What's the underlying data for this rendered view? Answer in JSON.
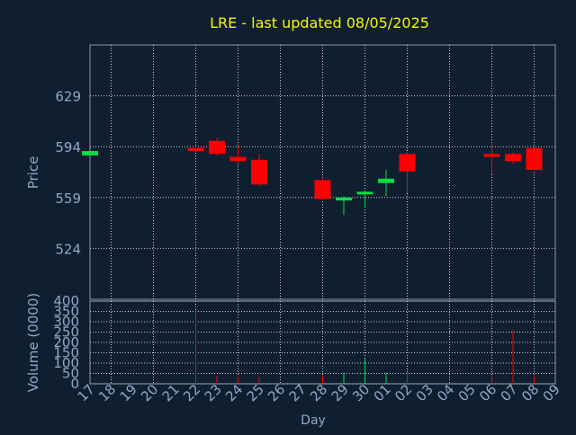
{
  "title": "LRE - last updated 08/05/2025",
  "colors": {
    "background": "#0f1f30",
    "frame": "#8899aa",
    "grid": "#c8d0d8",
    "title": "#f5f500",
    "axis_text": "#8fa8c8",
    "up": "#00e040",
    "down": "#ff0000"
  },
  "chart_data": [
    {
      "type": "candlestick",
      "title": "LRE - last updated 08/05/2025",
      "xlabel": "Day",
      "ylabel": "Price",
      "x_tick_labels": [
        "17",
        "18",
        "19",
        "20",
        "21",
        "22",
        "23",
        "24",
        "25",
        "26",
        "27",
        "28",
        "29",
        "30",
        "01",
        "02",
        "03",
        "04",
        "05",
        "06",
        "07",
        "08",
        "09"
      ],
      "y_ticks": [
        524,
        559,
        594,
        629
      ],
      "ylim": [
        489,
        664
      ],
      "grid": true,
      "candles": [
        {
          "day": "17",
          "open": 588,
          "close": 591,
          "high": 591,
          "low": 588
        },
        {
          "day": "22",
          "open": 593,
          "close": 591,
          "high": 594,
          "low": 590
        },
        {
          "day": "23",
          "open": 598,
          "close": 589,
          "high": 600,
          "low": 588
        },
        {
          "day": "24",
          "open": 587,
          "close": 584,
          "high": 595,
          "low": 583
        },
        {
          "day": "25",
          "open": 585,
          "close": 568,
          "high": 589,
          "low": 567
        },
        {
          "day": "28",
          "open": 571,
          "close": 558,
          "high": 572,
          "low": 557
        },
        {
          "day": "29",
          "open": 557,
          "close": 559,
          "high": 560,
          "low": 547
        },
        {
          "day": "30",
          "open": 562,
          "close": 563,
          "high": 563,
          "low": 552
        },
        {
          "day": "01",
          "open": 569,
          "close": 572,
          "high": 578,
          "low": 560
        },
        {
          "day": "02",
          "open": 589,
          "close": 577,
          "high": 590,
          "low": 562
        },
        {
          "day": "06",
          "open": 589,
          "close": 587,
          "high": 597,
          "low": 575
        },
        {
          "day": "07",
          "open": 589,
          "close": 584,
          "high": 590,
          "low": 582
        },
        {
          "day": "08",
          "open": 593,
          "close": 578,
          "high": 593,
          "low": 578
        }
      ]
    },
    {
      "type": "bar",
      "xlabel": "Day",
      "ylabel": "Volume (0000)",
      "x_tick_labels": [
        "17",
        "18",
        "19",
        "20",
        "21",
        "22",
        "23",
        "24",
        "25",
        "26",
        "27",
        "28",
        "29",
        "30",
        "01",
        "02",
        "03",
        "04",
        "05",
        "06",
        "07",
        "08",
        "09"
      ],
      "y_tick_labels": [
        "0",
        "50",
        "100",
        "150",
        "200",
        "250",
        "300",
        "350",
        "400"
      ],
      "ylim": [
        0,
        400
      ],
      "grid": true,
      "bars": [
        {
          "day": "22",
          "value": 350,
          "direction": "down"
        },
        {
          "day": "23",
          "value": 40,
          "direction": "down"
        },
        {
          "day": "24",
          "value": 35,
          "direction": "down"
        },
        {
          "day": "25",
          "value": 35,
          "direction": "down"
        },
        {
          "day": "28",
          "value": 40,
          "direction": "down"
        },
        {
          "day": "29",
          "value": 55,
          "direction": "up"
        },
        {
          "day": "30",
          "value": 120,
          "direction": "up"
        },
        {
          "day": "01",
          "value": 55,
          "direction": "up"
        },
        {
          "day": "02",
          "value": 55,
          "direction": "down"
        },
        {
          "day": "06",
          "value": 40,
          "direction": "down"
        },
        {
          "day": "07",
          "value": 260,
          "direction": "down"
        },
        {
          "day": "08",
          "value": 40,
          "direction": "down"
        }
      ]
    }
  ]
}
